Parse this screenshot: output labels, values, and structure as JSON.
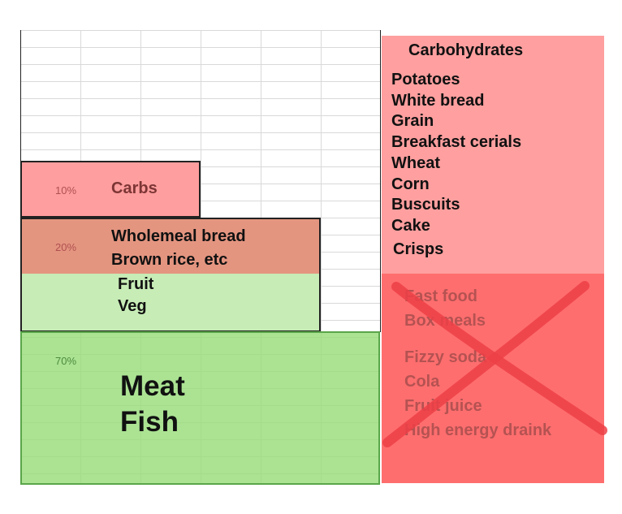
{
  "tiers": [
    {
      "percent": "10%",
      "label": "Carbs"
    },
    {
      "percent": "20%",
      "lines": [
        "Wholemeal bread",
        "Brown rice, etc"
      ],
      "sub_lines": [
        "Fruit",
        "Veg"
      ]
    },
    {
      "percent": "70%",
      "lines": [
        "Meat",
        "Fish"
      ]
    }
  ],
  "carbs_panel": {
    "title": "Carbohydrates",
    "items": [
      "Potatoes",
      "White bread",
      "Grain",
      "Breakfast cerials",
      "Wheat",
      "Corn",
      "Buscuits",
      "Cake",
      "Crisps"
    ]
  },
  "avoid_panel": {
    "items": [
      "Fast food",
      "Box meals",
      "Fizzy soda",
      "Cola",
      "Fruit juice",
      "High energy draink"
    ]
  },
  "colors": {
    "carbs_top": "#ff9e9e",
    "wholemeal": "#e49580",
    "fruit_veg": "#c7ecb6",
    "meat_fish": "#a7e38f",
    "carbs_panel": "#ff9f9f",
    "avoid_panel": "#ff6e6e",
    "cross": "#ec3f47"
  }
}
